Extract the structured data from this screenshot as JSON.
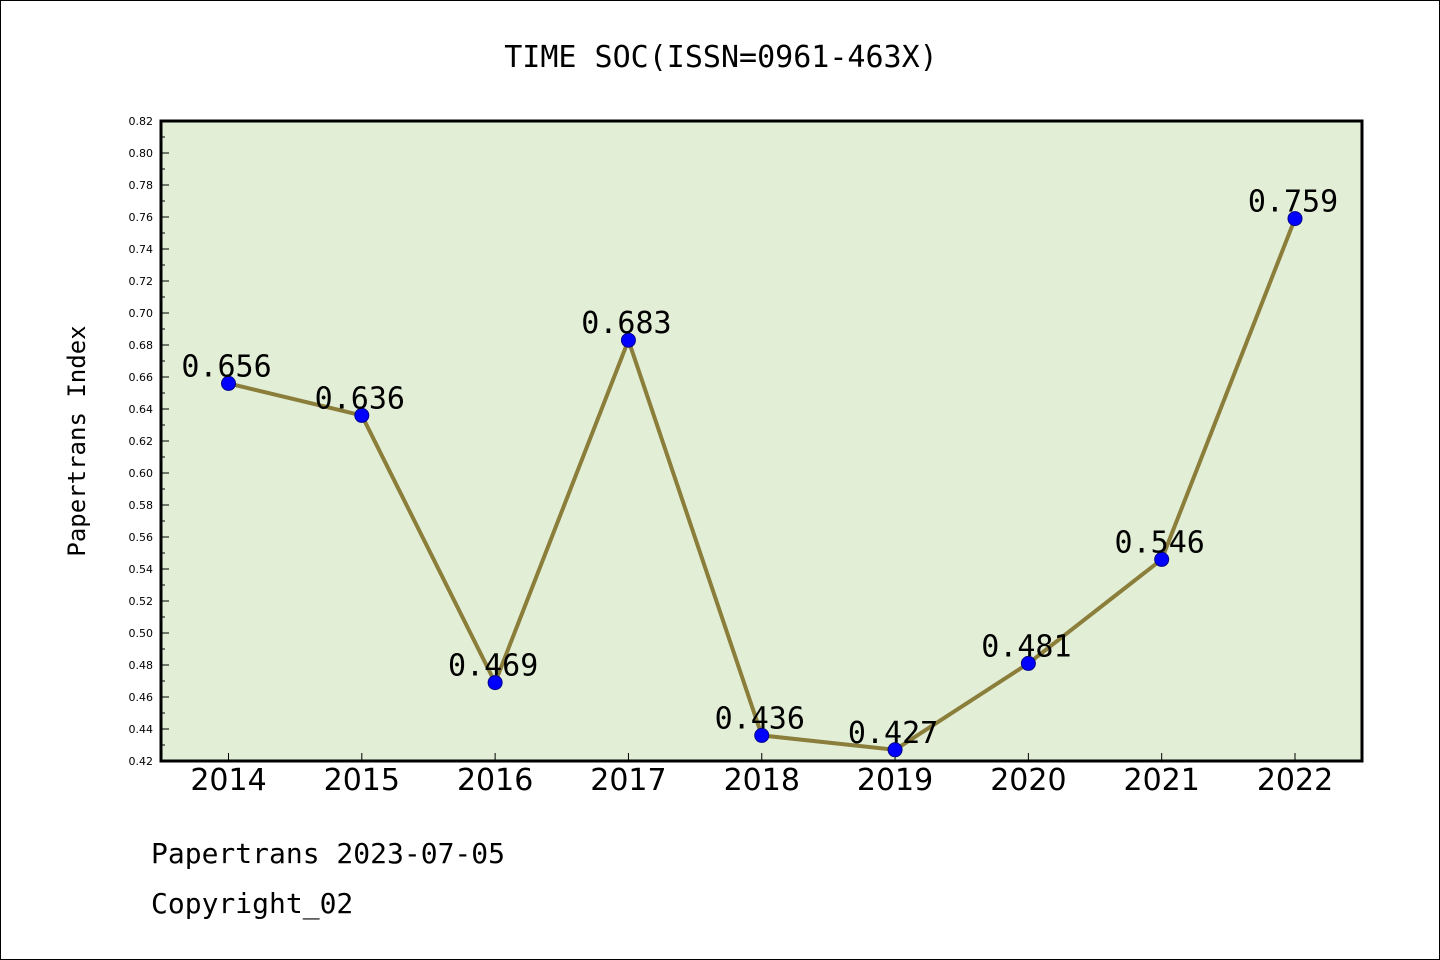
{
  "footer": {
    "line1": "Papertrans 2023-07-05",
    "line2": "Copyright_02"
  },
  "chart_data": {
    "type": "line",
    "title": "TIME SOC(ISSN=0961-463X)",
    "xlabel": "",
    "ylabel": "Papertrans Index",
    "categories": [
      "2014",
      "2015",
      "2016",
      "2017",
      "2018",
      "2019",
      "2020",
      "2021",
      "2022"
    ],
    "series": [
      {
        "values": [
          0.656,
          0.636,
          0.469,
          0.683,
          0.436,
          0.427,
          0.481,
          0.546,
          0.759
        ],
        "labels": [
          "0.656",
          "0.636",
          "0.469",
          "0.683",
          "0.436",
          "0.427",
          "0.481",
          "0.546",
          "0.759"
        ]
      }
    ],
    "ylim": [
      0.42,
      0.82
    ],
    "yticks": [
      "0.42",
      "0.44",
      "0.46",
      "0.48",
      "0.50",
      "0.52",
      "0.54",
      "0.56",
      "0.58",
      "0.60",
      "0.62",
      "0.64",
      "0.66",
      "0.68",
      "0.70",
      "0.72",
      "0.74",
      "0.76",
      "0.78",
      "0.80",
      "0.82"
    ],
    "grid": false,
    "legend": "none",
    "colors": {
      "plot_background": "#e2efd6",
      "line": "#8b7d3a",
      "marker": "#0000ff"
    }
  }
}
